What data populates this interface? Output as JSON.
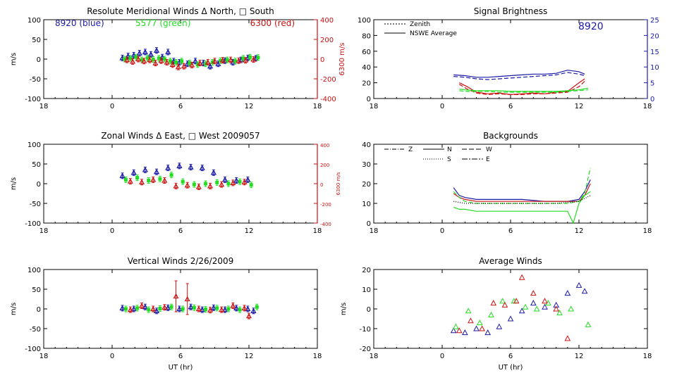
{
  "colors": {
    "blue": "#1a1aa8",
    "green": "#22dd22",
    "red": "#cc1111",
    "black": "#000000"
  },
  "chart_data": [
    {
      "id": "meridional",
      "type": "scatter",
      "title": "Resolute Meridional Winds Δ North, □ South",
      "xlabel": "",
      "ylabel": "m/s",
      "y2label": "6300 m/s",
      "xlim": [
        -6,
        18
      ],
      "x_tick_labels": [
        "18",
        "0",
        "6",
        "12",
        "18"
      ],
      "ylim": [
        -100,
        100
      ],
      "y_ticks": [
        100,
        50,
        0,
        -50,
        -100
      ],
      "y2lim": [
        -400,
        400
      ],
      "y2_ticks": [
        400,
        200,
        0,
        -200,
        -400
      ],
      "annotations": [
        "8920 (blue)",
        "5577 (green)",
        "6300 (red)"
      ],
      "series": [
        {
          "color": "blue",
          "x": [
            0.9,
            1.4,
            1.9,
            2.4,
            2.9,
            3.4,
            3.9,
            4.4,
            4.9,
            5.4,
            5.9,
            6.6,
            7.3,
            8,
            8.6,
            9.3,
            9.9,
            10.6,
            11.3,
            11.9,
            12.6
          ],
          "y": [
            3,
            8,
            10,
            15,
            18,
            12,
            22,
            5,
            18,
            -5,
            -8,
            -12,
            -5,
            -10,
            -18,
            -12,
            -4,
            -8,
            -2,
            3,
            2
          ]
        },
        {
          "color": "green",
          "x": [
            1.1,
            1.6,
            2.1,
            2.6,
            3.1,
            3.6,
            4.1,
            4.6,
            5.1,
            5.6,
            6.1,
            6.8,
            7.5,
            8.2,
            8.8,
            9.5,
            10.1,
            10.8,
            11.5,
            12.1,
            12.8
          ],
          "y": [
            0,
            2,
            5,
            -2,
            3,
            -1,
            2,
            0,
            -5,
            -8,
            -5,
            -10,
            -14,
            -12,
            -8,
            -4,
            -2,
            -5,
            2,
            5,
            4
          ]
        },
        {
          "color": "red",
          "x": [
            1.3,
            1.8,
            2.3,
            2.8,
            3.3,
            3.8,
            4.3,
            4.8,
            5.3,
            5.8,
            6.3,
            7,
            7.7,
            8.4,
            9,
            9.7,
            10.4,
            11.1,
            11.7,
            12.4
          ],
          "y": [
            -2,
            -6,
            0,
            -5,
            -2,
            -10,
            -4,
            -8,
            -14,
            -20,
            -18,
            -15,
            -10,
            -8,
            -5,
            -3,
            -2,
            -4,
            -3,
            -1
          ]
        }
      ]
    },
    {
      "id": "brightness",
      "type": "line",
      "title": "Signal Brightness",
      "annotations": [
        "8920"
      ],
      "legend": [
        "Zenith",
        "NSWE Average"
      ],
      "legend_position": "top-left",
      "xlim": [
        -6,
        18
      ],
      "x_tick_labels": [
        "18",
        "0",
        "6",
        "12",
        "18"
      ],
      "ylim": [
        0,
        100
      ],
      "y_ticks": [
        100,
        80,
        60,
        40,
        20,
        0
      ],
      "y2lim": [
        0,
        25
      ],
      "y2_ticks": [
        25,
        20,
        15,
        10,
        5,
        0
      ],
      "series": [
        {
          "color": "blue",
          "style": "solid",
          "x": [
            1,
            2,
            3,
            4,
            5,
            6,
            7,
            8,
            9,
            10,
            11,
            12,
            12.5
          ],
          "y": [
            30,
            29,
            27,
            27,
            28,
            29,
            30,
            31,
            31,
            32,
            36,
            34,
            31
          ]
        },
        {
          "color": "blue",
          "style": "dashed",
          "x": [
            1,
            2,
            3,
            4,
            5,
            6,
            7,
            8,
            9,
            10,
            11,
            12,
            12.5
          ],
          "y": [
            28,
            27,
            25,
            24,
            25,
            26,
            27,
            28,
            29,
            30,
            33,
            31,
            29
          ]
        },
        {
          "color": "red",
          "style": "solid",
          "x": [
            1.5,
            2.2,
            3,
            4,
            5,
            6,
            7,
            8,
            9,
            10,
            11,
            12,
            12.5
          ],
          "y": [
            20,
            15,
            8,
            6,
            7,
            5,
            6,
            7,
            6,
            8,
            9,
            20,
            25
          ]
        },
        {
          "color": "red",
          "style": "dashed",
          "x": [
            1.5,
            2.2,
            3,
            4,
            5,
            6,
            7,
            8,
            9,
            10,
            11,
            12,
            12.5
          ],
          "y": [
            18,
            12,
            7,
            5,
            6,
            5,
            5,
            6,
            6,
            7,
            8,
            15,
            22
          ]
        },
        {
          "color": "green",
          "style": "solid",
          "x": [
            1.5,
            2,
            3,
            4,
            5,
            6,
            7,
            8,
            9,
            10,
            11,
            12,
            12.8
          ],
          "y": [
            12,
            11,
            10,
            10,
            10,
            9,
            9,
            9,
            9,
            9,
            10,
            11,
            13
          ]
        },
        {
          "color": "green",
          "style": "dashed",
          "x": [
            1.5,
            2,
            3,
            4,
            5,
            6,
            7,
            8,
            9,
            10,
            11,
            12,
            12.8
          ],
          "y": [
            10,
            9,
            9,
            9,
            8,
            8,
            8,
            8,
            8,
            8,
            9,
            10,
            11
          ]
        }
      ]
    },
    {
      "id": "zonal",
      "type": "scatter",
      "title": "Zonal Winds Δ East, □ West 2009057",
      "ylabel": "m/s",
      "y2label": "6300 m/s",
      "xlim": [
        -6,
        18
      ],
      "x_tick_labels": [
        "18",
        "0",
        "6",
        "12",
        "18"
      ],
      "ylim": [
        -100,
        100
      ],
      "y_ticks": [
        100,
        50,
        0,
        -50,
        -100
      ],
      "y2lim": [
        -400,
        400
      ],
      "y2_ticks": [
        400,
        200,
        0,
        -200,
        -400
      ],
      "series": [
        {
          "color": "blue",
          "x": [
            0.9,
            1.9,
            2.9,
            3.9,
            4.9,
            5.9,
            6.9,
            7.9,
            8.9,
            9.9,
            10.9,
            11.9
          ],
          "y": [
            20,
            28,
            35,
            30,
            40,
            45,
            42,
            40,
            28,
            10,
            8,
            10
          ]
        },
        {
          "color": "green",
          "x": [
            1.2,
            2.2,
            3.2,
            4.2,
            5.2,
            6.2,
            7.2,
            8.2,
            9.2,
            10.2,
            11.2,
            12.2
          ],
          "y": [
            10,
            15,
            8,
            12,
            22,
            5,
            -2,
            0,
            3,
            0,
            5,
            -3
          ]
        },
        {
          "color": "red",
          "x": [
            1.6,
            2.6,
            3.6,
            4.6,
            5.6,
            6.6,
            7.6,
            8.6,
            9.6,
            10.6,
            11.6
          ],
          "y": [
            6,
            4,
            10,
            8,
            -6,
            -4,
            -8,
            -6,
            -2,
            2,
            4
          ]
        }
      ]
    },
    {
      "id": "backgrounds",
      "type": "line",
      "title": "Backgrounds",
      "legend": [
        "Z",
        "N",
        "W",
        "S",
        "E"
      ],
      "legend_position": "top-left",
      "xlim": [
        -6,
        18
      ],
      "x_tick_labels": [
        "18",
        "0",
        "6",
        "12",
        "18"
      ],
      "ylim": [
        0,
        40
      ],
      "y_ticks": [
        40,
        30,
        20,
        10,
        0
      ],
      "series": [
        {
          "color": "blue",
          "style": "solid",
          "x": [
            1,
            1.5,
            2,
            3,
            5,
            7,
            9,
            11,
            12,
            12.5,
            13
          ],
          "y": [
            18,
            14,
            13,
            12,
            12,
            12,
            11,
            11,
            12,
            16,
            22
          ]
        },
        {
          "color": "red",
          "style": "solid",
          "x": [
            1,
            1.5,
            2,
            3,
            5,
            7,
            9,
            11,
            12,
            12.5,
            13
          ],
          "y": [
            15,
            13,
            12,
            11,
            11,
            11,
            11,
            11,
            11,
            14,
            20
          ]
        },
        {
          "color": "green",
          "style": "solid",
          "x": [
            1,
            1.5,
            2,
            3,
            5,
            7,
            9,
            11,
            11.5,
            12,
            12.5,
            13
          ],
          "y": [
            8,
            7,
            7,
            6,
            6,
            6,
            6,
            6,
            0,
            10,
            14,
            16
          ]
        },
        {
          "color": "green",
          "style": "dashed",
          "x": [
            1,
            1.5,
            2,
            3,
            5,
            7,
            9,
            11,
            12,
            12.5,
            13
          ],
          "y": [
            16,
            13,
            11,
            10,
            10,
            10,
            10,
            10,
            11,
            15,
            28
          ]
        },
        {
          "color": "black",
          "style": "dotted",
          "x": [
            1,
            2,
            4,
            6,
            8,
            10,
            12,
            13
          ],
          "y": [
            11,
            10,
            10,
            10,
            10,
            10,
            11,
            14
          ]
        }
      ]
    },
    {
      "id": "vertical",
      "type": "scatter",
      "title": "Vertical Winds 2/26/2009",
      "xlabel": "UT (hr)",
      "ylabel": "m/s",
      "xlim": [
        -6,
        18
      ],
      "x_tick_labels": [
        "18",
        "0",
        "6",
        "12",
        "18"
      ],
      "ylim": [
        -100,
        100
      ],
      "y_ticks": [
        100,
        50,
        0,
        -50,
        -100
      ],
      "series": [
        {
          "color": "blue",
          "x": [
            0.9,
            1.9,
            2.9,
            3.9,
            4.9,
            5.9,
            6.9,
            7.9,
            8.9,
            9.9,
            10.9,
            11.9,
            12.4
          ],
          "y": [
            2,
            0,
            5,
            -5,
            3,
            0,
            5,
            -2,
            3,
            -2,
            2,
            0,
            -5
          ]
        },
        {
          "color": "green",
          "x": [
            1.2,
            2.2,
            3.2,
            4.2,
            5.2,
            6.2,
            7.2,
            8.2,
            9.2,
            10.2,
            11.2,
            12.7
          ],
          "y": [
            0,
            2,
            -2,
            1,
            5,
            0,
            3,
            -1,
            2,
            0,
            -2,
            5
          ]
        },
        {
          "color": "red",
          "x": [
            1.6,
            2.6,
            3.6,
            4.6,
            5.6,
            6.6,
            7.6,
            8.6,
            9.6,
            10.6,
            11.6,
            12
          ],
          "y": [
            -2,
            8,
            0,
            4,
            32,
            25,
            0,
            -3,
            -2,
            8,
            2,
            -18
          ]
        }
      ]
    },
    {
      "id": "average",
      "type": "scatter",
      "title": "Average Winds",
      "xlabel": "UT (hr)",
      "ylabel": "m/s",
      "xlim": [
        -6,
        18
      ],
      "x_tick_labels": [
        "18",
        "0",
        "6",
        "12",
        "18"
      ],
      "ylim": [
        -20,
        20
      ],
      "y_ticks": [
        20,
        10,
        0,
        -10,
        -20
      ],
      "series": [
        {
          "color": "blue",
          "x": [
            1,
            2,
            3,
            4,
            5,
            6,
            7,
            8,
            9,
            10,
            11,
            12,
            12.5
          ],
          "y": [
            -11,
            -12,
            -10,
            -12,
            -9,
            -5,
            -1,
            3,
            1,
            2,
            8,
            12,
            9
          ]
        },
        {
          "color": "green",
          "x": [
            1.2,
            2.3,
            3.3,
            4.3,
            5.3,
            6.3,
            7.3,
            8.3,
            9.3,
            10.3,
            11.3,
            12.8
          ],
          "y": [
            -9,
            -1,
            -7,
            -3,
            4,
            4,
            1,
            0,
            3,
            -2,
            0,
            -8
          ]
        },
        {
          "color": "red",
          "x": [
            1.5,
            2.5,
            3.5,
            4.5,
            5.5,
            6.5,
            7,
            8,
            9,
            10,
            11
          ],
          "y": [
            -11,
            -6,
            -10,
            3,
            2,
            4,
            16,
            8,
            4,
            0,
            -15
          ]
        }
      ]
    }
  ]
}
